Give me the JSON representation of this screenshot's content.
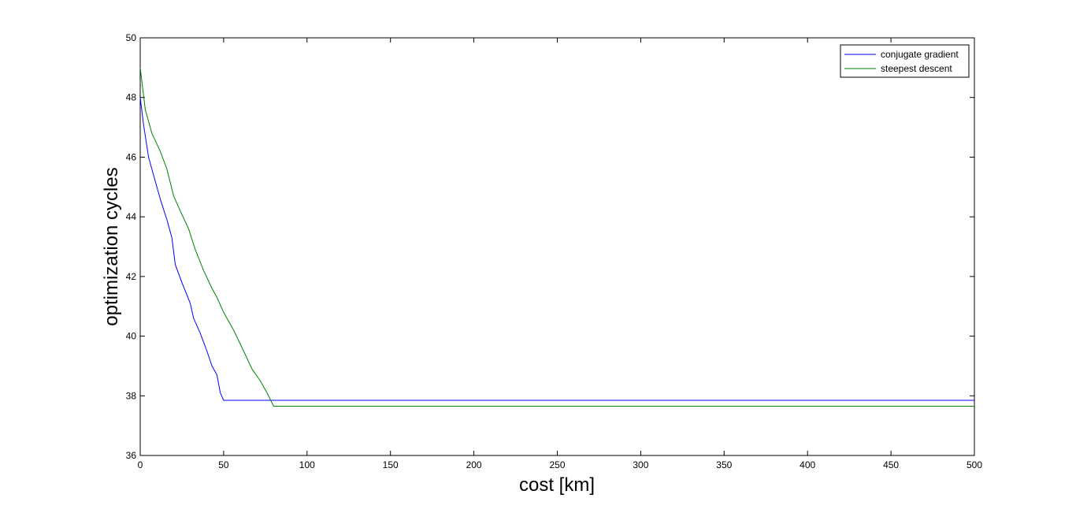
{
  "chart_data": {
    "type": "line",
    "xlabel": "cost [km]",
    "ylabel": "optimization cycles",
    "xlim": [
      0,
      500
    ],
    "ylim": [
      36,
      50
    ],
    "x_ticks": [
      0,
      50,
      100,
      150,
      200,
      250,
      300,
      350,
      400,
      450,
      500
    ],
    "y_ticks": [
      36,
      38,
      40,
      42,
      44,
      46,
      48,
      50
    ],
    "grid": false,
    "legend_position": "top-right",
    "series": [
      {
        "name": "conjugate gradient",
        "color": "#0000ff",
        "points": [
          [
            0,
            48.0
          ],
          [
            2,
            47.1
          ],
          [
            5,
            46.0
          ],
          [
            8,
            45.4
          ],
          [
            12,
            44.6
          ],
          [
            16,
            43.9
          ],
          [
            19,
            43.3
          ],
          [
            21,
            42.4
          ],
          [
            25,
            41.8
          ],
          [
            30,
            41.1
          ],
          [
            32,
            40.6
          ],
          [
            36,
            40.1
          ],
          [
            40,
            39.5
          ],
          [
            43,
            39.0
          ],
          [
            46,
            38.7
          ],
          [
            48,
            38.1
          ],
          [
            50,
            37.85
          ],
          [
            500,
            37.85
          ]
        ]
      },
      {
        "name": "steepest descent",
        "color": "#008000",
        "points": [
          [
            0,
            49.0
          ],
          [
            3,
            47.6
          ],
          [
            7,
            46.8
          ],
          [
            12,
            46.2
          ],
          [
            16,
            45.6
          ],
          [
            20,
            44.7
          ],
          [
            24,
            44.2
          ],
          [
            29,
            43.6
          ],
          [
            33,
            42.9
          ],
          [
            38,
            42.2
          ],
          [
            43,
            41.6
          ],
          [
            46,
            41.3
          ],
          [
            50,
            40.8
          ],
          [
            56,
            40.2
          ],
          [
            62,
            39.5
          ],
          [
            67,
            38.9
          ],
          [
            72,
            38.5
          ],
          [
            76,
            38.1
          ],
          [
            80,
            37.65
          ],
          [
            500,
            37.65
          ]
        ]
      }
    ]
  }
}
